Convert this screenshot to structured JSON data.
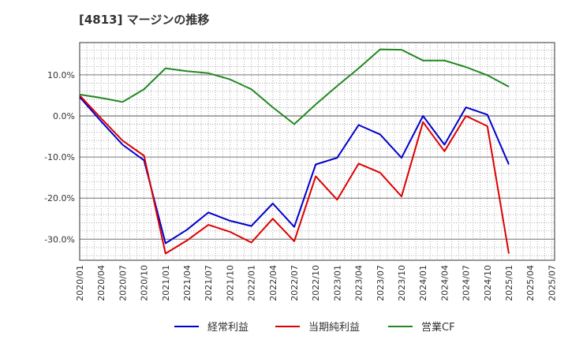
{
  "title": "[4813]  マージンの推移",
  "chart_data": {
    "type": "line",
    "x": [
      "2020/01",
      "2020/04",
      "2020/07",
      "2020/10",
      "2021/01",
      "2021/04",
      "2021/07",
      "2021/10",
      "2022/01",
      "2022/04",
      "2022/07",
      "2022/10",
      "2023/01",
      "2023/04",
      "2023/07",
      "2023/10",
      "2024/01",
      "2024/04",
      "2024/07",
      "2024/10",
      "2025/01"
    ],
    "x_ticks": [
      "2020/01",
      "2020/04",
      "2020/07",
      "2020/10",
      "2021/01",
      "2021/04",
      "2021/07",
      "2021/10",
      "2022/01",
      "2022/04",
      "2022/07",
      "2022/10",
      "2023/01",
      "2023/04",
      "2023/07",
      "2023/10",
      "2024/01",
      "2024/04",
      "2024/07",
      "2024/10",
      "2025/01",
      "2025/04",
      "2025/07"
    ],
    "y_ticks": [
      10,
      0,
      -10,
      -20,
      -30
    ],
    "y_tick_labels": [
      "10.0%",
      "0.0%",
      "-10.0%",
      "-20.0%",
      "-30.0%"
    ],
    "ylim": [
      -35,
      18
    ],
    "grid": true,
    "legend_position": "bottom",
    "series": [
      {
        "name": "経常利益",
        "color": "#0000cc",
        "values": [
          4.6,
          -1.3,
          -7.0,
          -10.8,
          -31.0,
          -27.7,
          -23.5,
          -25.5,
          -26.8,
          -21.3,
          -27.0,
          -11.8,
          -10.2,
          -2.2,
          -4.5,
          -10.2,
          0.0,
          -7.0,
          2.1,
          0.3,
          -11.8
        ]
      },
      {
        "name": "当期純利益",
        "color": "#dd0000",
        "values": [
          5.0,
          -0.6,
          -6.0,
          -9.7,
          -33.5,
          -30.3,
          -26.5,
          -28.2,
          -30.8,
          -25.0,
          -30.5,
          -14.7,
          -20.4,
          -11.6,
          -13.8,
          -19.6,
          -1.5,
          -8.6,
          0.0,
          -2.5,
          -33.5
        ]
      },
      {
        "name": "営業CF",
        "color": "#228822",
        "values": [
          5.2,
          4.4,
          3.4,
          6.5,
          11.6,
          10.9,
          10.4,
          8.9,
          6.5,
          2.1,
          -2.0,
          2.8,
          7.3,
          11.6,
          16.2,
          16.1,
          13.5,
          13.5,
          11.9,
          9.9,
          7.1
        ]
      }
    ]
  }
}
